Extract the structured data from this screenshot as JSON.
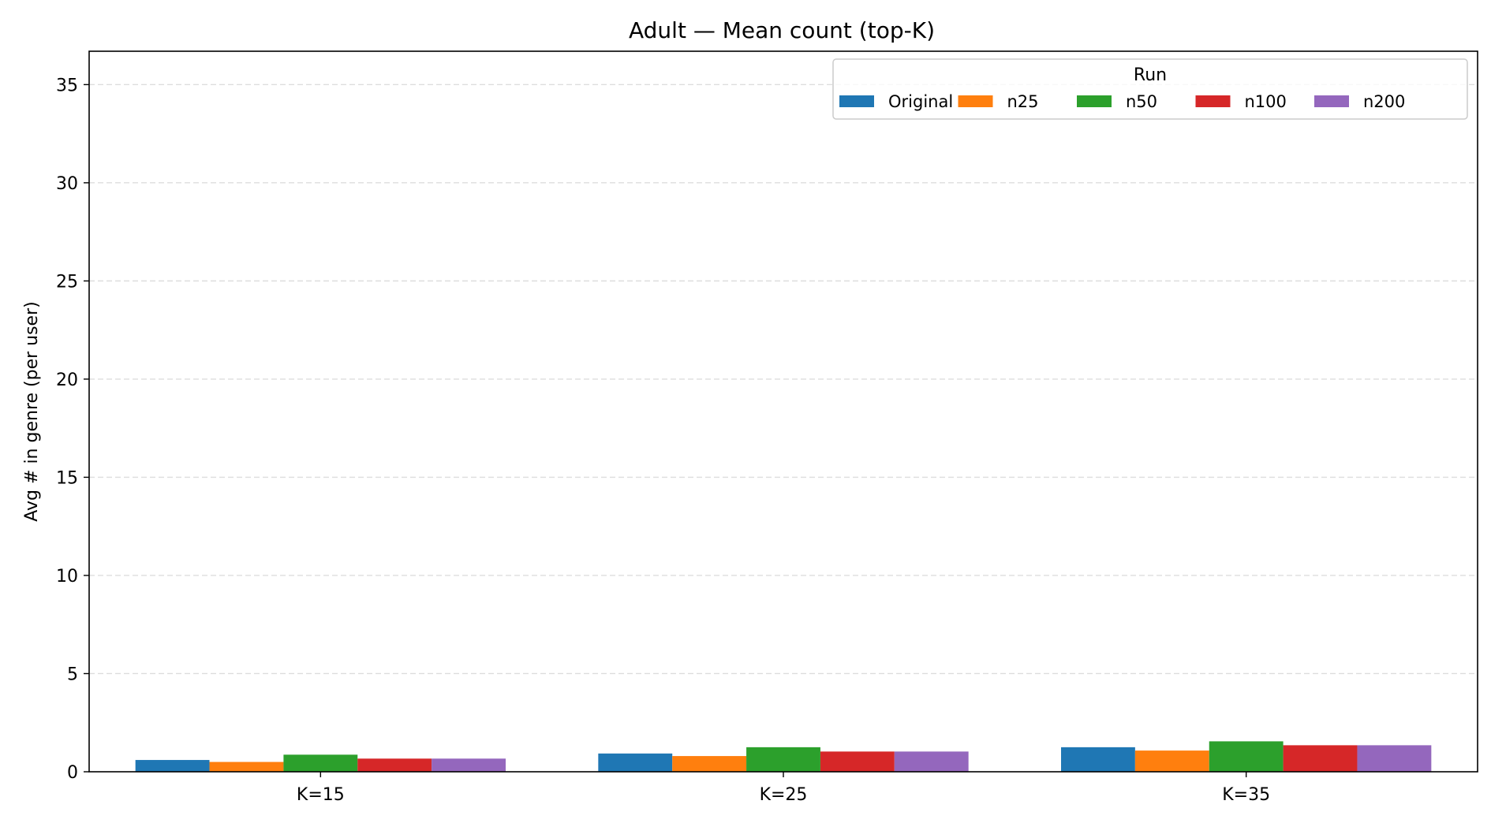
{
  "chart_data": {
    "type": "bar",
    "title": "Adult — Mean count (top-K)",
    "xlabel": "",
    "ylabel": "Avg # in genre (per user)",
    "categories": [
      "K=15",
      "K=25",
      "K=35"
    ],
    "ylim": [
      0,
      36.7
    ],
    "yticks": [
      0,
      5,
      10,
      15,
      20,
      25,
      30,
      35
    ],
    "grid": "y-dashed",
    "legend": {
      "title": "Run",
      "placement": "top-right",
      "columns": 5
    },
    "series": [
      {
        "name": "Original",
        "color": "#1f77b4",
        "values": [
          0.6,
          0.93,
          1.25
        ]
      },
      {
        "name": "n25",
        "color": "#ff7f0e",
        "values": [
          0.5,
          0.8,
          1.08
        ]
      },
      {
        "name": "n50",
        "color": "#2ca02c",
        "values": [
          0.87,
          1.25,
          1.55
        ]
      },
      {
        "name": "n100",
        "color": "#d62728",
        "values": [
          0.67,
          1.03,
          1.35
        ]
      },
      {
        "name": "n200",
        "color": "#9467bd",
        "values": [
          0.67,
          1.03,
          1.35
        ]
      }
    ]
  }
}
